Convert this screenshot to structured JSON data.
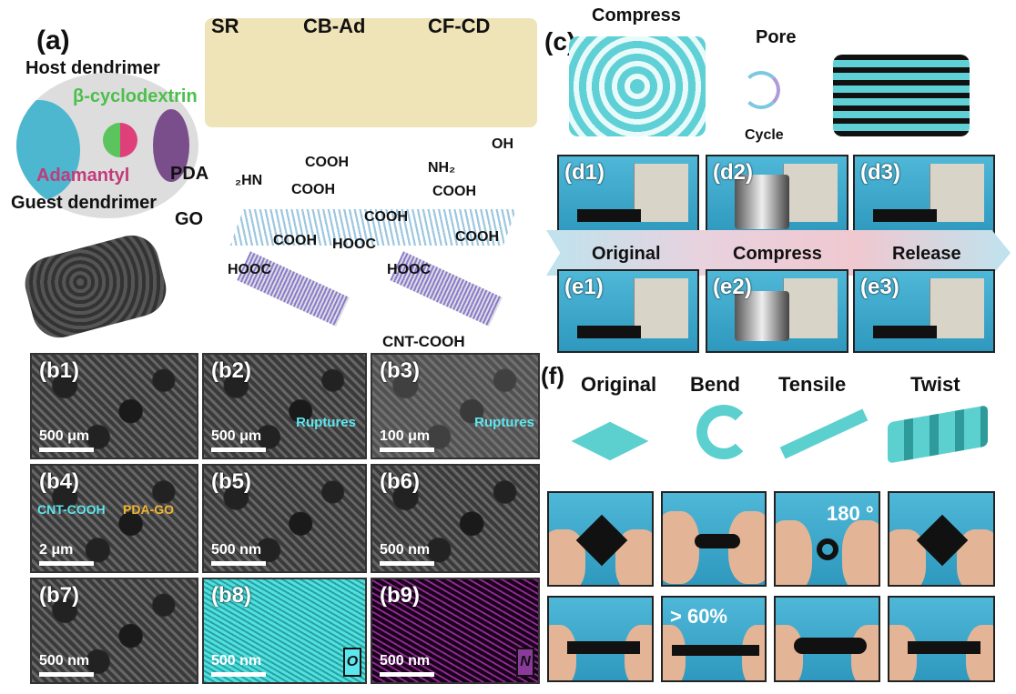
{
  "panel_a": {
    "label": "(a)",
    "host": "Host dendrimer",
    "cd": "β-cyclodextrin",
    "adamantyl": "Adamantyl",
    "guest": "Guest dendrimer",
    "sr": "SR",
    "cbad": "CB-Ad",
    "cfcd": "CF-CD",
    "pda": "PDA",
    "go": "GO",
    "cnt": "CNT-COOH",
    "cooh": "COOH",
    "hooc": "HOOC",
    "hn2": "₂HN",
    "nh2": "NH₂",
    "oh": "OH",
    "colors": {
      "cd": "#4cbf4c",
      "adamantyl": "#c23b7a",
      "matrix": "#efe3b8"
    }
  },
  "panel_b": {
    "panels": [
      {
        "label": "(b1)",
        "scale": "500 μm"
      },
      {
        "label": "(b2)",
        "scale": "500 μm",
        "note": "Ruptures"
      },
      {
        "label": "(b3)",
        "scale": "100 μm",
        "note": "Ruptures"
      },
      {
        "label": "(b4)",
        "scale": "2 μm",
        "note": "CNT-COOH",
        "note2": "PDA-GO"
      },
      {
        "label": "(b5)",
        "scale": "500 nm"
      },
      {
        "label": "(b6)",
        "scale": "500 nm"
      },
      {
        "label": "(b7)",
        "scale": "500 nm"
      },
      {
        "label": "(b8)",
        "scale": "500 nm",
        "element": "O"
      },
      {
        "label": "(b9)",
        "scale": "500 nm",
        "element": "N"
      }
    ]
  },
  "panel_c": {
    "label": "(c)",
    "compress": "Compress",
    "pore": "Pore",
    "cycle": "Cycle",
    "d": [
      "(d1)",
      "(d2)",
      "(d3)"
    ],
    "e": [
      "(e1)",
      "(e2)",
      "(e3)"
    ],
    "stages": [
      "Original",
      "Compress",
      "Release"
    ]
  },
  "panel_f": {
    "label": "(f)",
    "headings": [
      "Original",
      "Bend",
      "Tensile",
      "Twist"
    ],
    "angle": "180 °",
    "strain": "> 60%"
  }
}
